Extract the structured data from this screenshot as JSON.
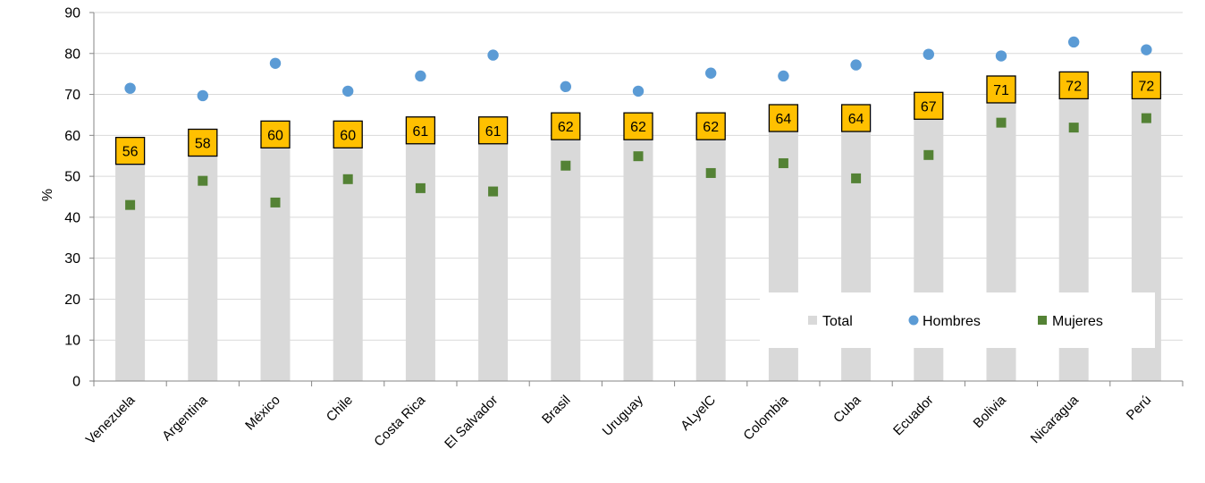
{
  "chart_data": {
    "type": "bar",
    "ylabel": "%",
    "ylim": [
      0,
      90
    ],
    "yticks": [
      0,
      10,
      20,
      30,
      40,
      50,
      60,
      70,
      80,
      90
    ],
    "grid": true,
    "legend_position": "bottom-right",
    "categories": [
      "Venezuela",
      "Argentina",
      "México",
      "Chile",
      "Costa Rica",
      "El Salvador",
      "Brasil",
      "Uruguay",
      "ALyelC",
      "Colombia",
      "Cuba",
      "Ecuador",
      "Bolivia",
      "Nicaragua",
      "Perú"
    ],
    "series": [
      {
        "name": "Total",
        "kind": "bar",
        "color": "#d9d9d9",
        "label_color": "#ffc000",
        "values": [
          56,
          58,
          60,
          60,
          61,
          61,
          62,
          62,
          62,
          64,
          64,
          67,
          71,
          72,
          72
        ]
      },
      {
        "name": "Hombres",
        "kind": "dot",
        "color": "#5b9bd5",
        "values": [
          71.5,
          69.7,
          77.6,
          70.8,
          74.5,
          79.6,
          71.9,
          70.8,
          75.2,
          74.5,
          77.2,
          79.8,
          79.4,
          82.8,
          80.9
        ]
      },
      {
        "name": "Mujeres",
        "kind": "square",
        "color": "#548235",
        "values": [
          43.0,
          48.9,
          43.6,
          49.3,
          47.1,
          46.3,
          52.6,
          54.9,
          50.8,
          53.2,
          49.5,
          55.2,
          63.1,
          61.9,
          64.2
        ]
      }
    ]
  }
}
